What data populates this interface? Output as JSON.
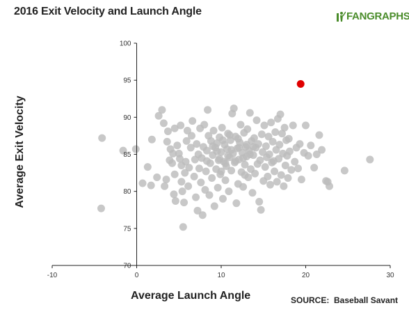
{
  "title": "2016 Exit Velocity and Launch Angle",
  "logo": {
    "icon": "fangraphs-batter-icon",
    "text_fan": "FAN",
    "text_graphs": "GRAPHS"
  },
  "source": "SOURCE:  Baseball Savant",
  "colors": {
    "points": "#bcbcbc",
    "highlight": "#e00000",
    "axis": "#222222"
  },
  "chart_data": {
    "type": "scatter",
    "title": "2016 Exit Velocity and Launch Angle",
    "xlabel": "Average Launch Angle",
    "ylabel": "Average Exit Velocity",
    "xlim": [
      -10,
      30
    ],
    "ylim": [
      70,
      100
    ],
    "xticks": [
      -10,
      0,
      10,
      20,
      30
    ],
    "yticks": [
      70,
      75,
      80,
      85,
      90,
      95,
      100
    ],
    "grid": false,
    "highlight_point": {
      "x": 19.4,
      "y": 94.5
    },
    "series": [
      {
        "points": [
          [
            -4.1,
            87.2
          ],
          [
            -4.2,
            77.7
          ],
          [
            -1.6,
            85.5
          ],
          [
            -0.1,
            85.7
          ],
          [
            0.7,
            81.1
          ],
          [
            1.3,
            83.3
          ],
          [
            1.7,
            80.8
          ],
          [
            1.8,
            87.0
          ],
          [
            2.4,
            81.9
          ],
          [
            2.6,
            90.2
          ],
          [
            3.0,
            91.0
          ],
          [
            3.2,
            89.2
          ],
          [
            3.3,
            80.7
          ],
          [
            3.5,
            81.6
          ],
          [
            3.6,
            86.7
          ],
          [
            3.7,
            88.1
          ],
          [
            3.9,
            84.2
          ],
          [
            4.0,
            85.7
          ],
          [
            4.2,
            83.8
          ],
          [
            4.3,
            85.1
          ],
          [
            4.4,
            79.6
          ],
          [
            4.5,
            88.5
          ],
          [
            4.5,
            82.3
          ],
          [
            4.6,
            78.7
          ],
          [
            4.8,
            86.2
          ],
          [
            5.0,
            85.1
          ],
          [
            5.1,
            84.4
          ],
          [
            5.2,
            88.9
          ],
          [
            5.3,
            81.3
          ],
          [
            5.3,
            83.5
          ],
          [
            5.4,
            80.0
          ],
          [
            5.5,
            75.2
          ],
          [
            5.6,
            78.5
          ],
          [
            5.7,
            82.5
          ],
          [
            5.8,
            84.0
          ],
          [
            5.9,
            86.8
          ],
          [
            6.0,
            88.2
          ],
          [
            6.1,
            80.7
          ],
          [
            6.2,
            83.2
          ],
          [
            6.4,
            85.9
          ],
          [
            6.5,
            87.5
          ],
          [
            6.6,
            89.5
          ],
          [
            6.8,
            82.0
          ],
          [
            6.9,
            84.3
          ],
          [
            7.0,
            79.2
          ],
          [
            7.1,
            86.4
          ],
          [
            7.2,
            77.4
          ],
          [
            7.3,
            85.0
          ],
          [
            7.4,
            83.1
          ],
          [
            7.5,
            88.5
          ],
          [
            7.6,
            81.2
          ],
          [
            7.7,
            84.5
          ],
          [
            7.8,
            76.8
          ],
          [
            7.9,
            86.0
          ],
          [
            8.0,
            89.0
          ],
          [
            8.1,
            80.2
          ],
          [
            8.2,
            82.7
          ],
          [
            8.3,
            85.5
          ],
          [
            8.4,
            91.0
          ],
          [
            8.5,
            87.5
          ],
          [
            8.6,
            79.5
          ],
          [
            8.7,
            83.8
          ],
          [
            8.8,
            86.8
          ],
          [
            8.9,
            81.8
          ],
          [
            9.0,
            84.9
          ],
          [
            9.1,
            88.2
          ],
          [
            9.2,
            78.0
          ],
          [
            9.3,
            85.9
          ],
          [
            9.4,
            83.0
          ],
          [
            9.5,
            86.5
          ],
          [
            9.6,
            80.5
          ],
          [
            9.7,
            84.2
          ],
          [
            9.8,
            87.3
          ],
          [
            9.9,
            82.3
          ],
          [
            10.0,
            85.3
          ],
          [
            10.1,
            88.6
          ],
          [
            10.2,
            79.0
          ],
          [
            10.3,
            84.0
          ],
          [
            10.4,
            86.3
          ],
          [
            10.5,
            81.5
          ],
          [
            10.6,
            83.4
          ],
          [
            10.7,
            85.7
          ],
          [
            10.8,
            87.8
          ],
          [
            10.9,
            80.0
          ],
          [
            11.0,
            84.6
          ],
          [
            11.1,
            86.9
          ],
          [
            11.2,
            82.8
          ],
          [
            11.3,
            90.5
          ],
          [
            11.4,
            85.1
          ],
          [
            11.5,
            91.2
          ],
          [
            11.6,
            83.9
          ],
          [
            11.7,
            87.4
          ],
          [
            11.8,
            78.4
          ],
          [
            11.9,
            85.8
          ],
          [
            12.0,
            81.0
          ],
          [
            12.1,
            84.3
          ],
          [
            12.2,
            86.6
          ],
          [
            12.3,
            89.0
          ],
          [
            12.4,
            82.6
          ],
          [
            12.5,
            85.2
          ],
          [
            12.6,
            80.6
          ],
          [
            12.7,
            87.9
          ],
          [
            12.8,
            83.6
          ],
          [
            12.9,
            86.0
          ],
          [
            13.0,
            84.7
          ],
          [
            13.1,
            88.4
          ],
          [
            13.2,
            81.9
          ],
          [
            13.3,
            85.5
          ],
          [
            13.4,
            90.6
          ],
          [
            13.5,
            83.0
          ],
          [
            13.6,
            86.8
          ],
          [
            13.7,
            79.8
          ],
          [
            13.8,
            84.9
          ],
          [
            13.9,
            87.2
          ],
          [
            14.0,
            82.4
          ],
          [
            14.1,
            85.9
          ],
          [
            14.2,
            89.6
          ],
          [
            14.3,
            83.7
          ],
          [
            14.4,
            86.4
          ],
          [
            14.5,
            78.6
          ],
          [
            14.6,
            84.2
          ],
          [
            14.7,
            77.5
          ],
          [
            14.8,
            87.7
          ],
          [
            14.9,
            85.3
          ],
          [
            15.0,
            81.4
          ],
          [
            15.1,
            88.9
          ],
          [
            15.2,
            83.3
          ],
          [
            15.3,
            86.1
          ],
          [
            15.4,
            84.6
          ],
          [
            15.5,
            82.0
          ],
          [
            15.6,
            87.4
          ],
          [
            15.7,
            85.0
          ],
          [
            15.8,
            80.9
          ],
          [
            15.9,
            89.3
          ],
          [
            16.0,
            83.9
          ],
          [
            16.1,
            86.7
          ],
          [
            16.2,
            84.1
          ],
          [
            16.3,
            82.7
          ],
          [
            16.4,
            88.0
          ],
          [
            16.5,
            85.6
          ],
          [
            16.6,
            81.3
          ],
          [
            16.7,
            89.8
          ],
          [
            16.8,
            84.4
          ],
          [
            16.9,
            86.3
          ],
          [
            17.0,
            90.4
          ],
          [
            17.1,
            82.2
          ],
          [
            17.2,
            87.8
          ],
          [
            17.3,
            85.1
          ],
          [
            17.4,
            80.7
          ],
          [
            17.5,
            88.6
          ],
          [
            17.6,
            83.5
          ],
          [
            17.7,
            86.9
          ],
          [
            17.8,
            84.8
          ],
          [
            17.9,
            81.8
          ],
          [
            18.0,
            87.1
          ],
          [
            18.1,
            85.4
          ],
          [
            18.3,
            82.9
          ],
          [
            18.5,
            88.9
          ],
          [
            18.7,
            84.0
          ],
          [
            18.9,
            85.9
          ],
          [
            19.1,
            83.1
          ],
          [
            19.3,
            86.4
          ],
          [
            19.5,
            81.6
          ],
          [
            19.8,
            85.2
          ],
          [
            20.0,
            88.9
          ],
          [
            20.3,
            84.8
          ],
          [
            20.6,
            86.2
          ],
          [
            21.0,
            83.2
          ],
          [
            21.3,
            85.0
          ],
          [
            21.6,
            87.6
          ],
          [
            21.9,
            85.6
          ],
          [
            22.4,
            81.4
          ],
          [
            22.6,
            81.3
          ],
          [
            22.8,
            80.7
          ],
          [
            24.6,
            82.8
          ],
          [
            27.6,
            84.3
          ],
          [
            9.0,
            86.1
          ],
          [
            9.5,
            85.4
          ],
          [
            10.2,
            86.9
          ],
          [
            10.8,
            84.8
          ],
          [
            11.2,
            85.6
          ],
          [
            11.7,
            84.1
          ],
          [
            12.1,
            85.9
          ],
          [
            12.6,
            84.5
          ],
          [
            13.0,
            86.3
          ],
          [
            13.4,
            85.0
          ],
          [
            10.5,
            83.8
          ],
          [
            11.0,
            87.6
          ],
          [
            12.0,
            87.1
          ],
          [
            9.8,
            84.4
          ],
          [
            12.8,
            82.2
          ],
          [
            8.3,
            84.1
          ],
          [
            13.8,
            86.0
          ],
          [
            10.0,
            82.7
          ]
        ]
      }
    ]
  }
}
